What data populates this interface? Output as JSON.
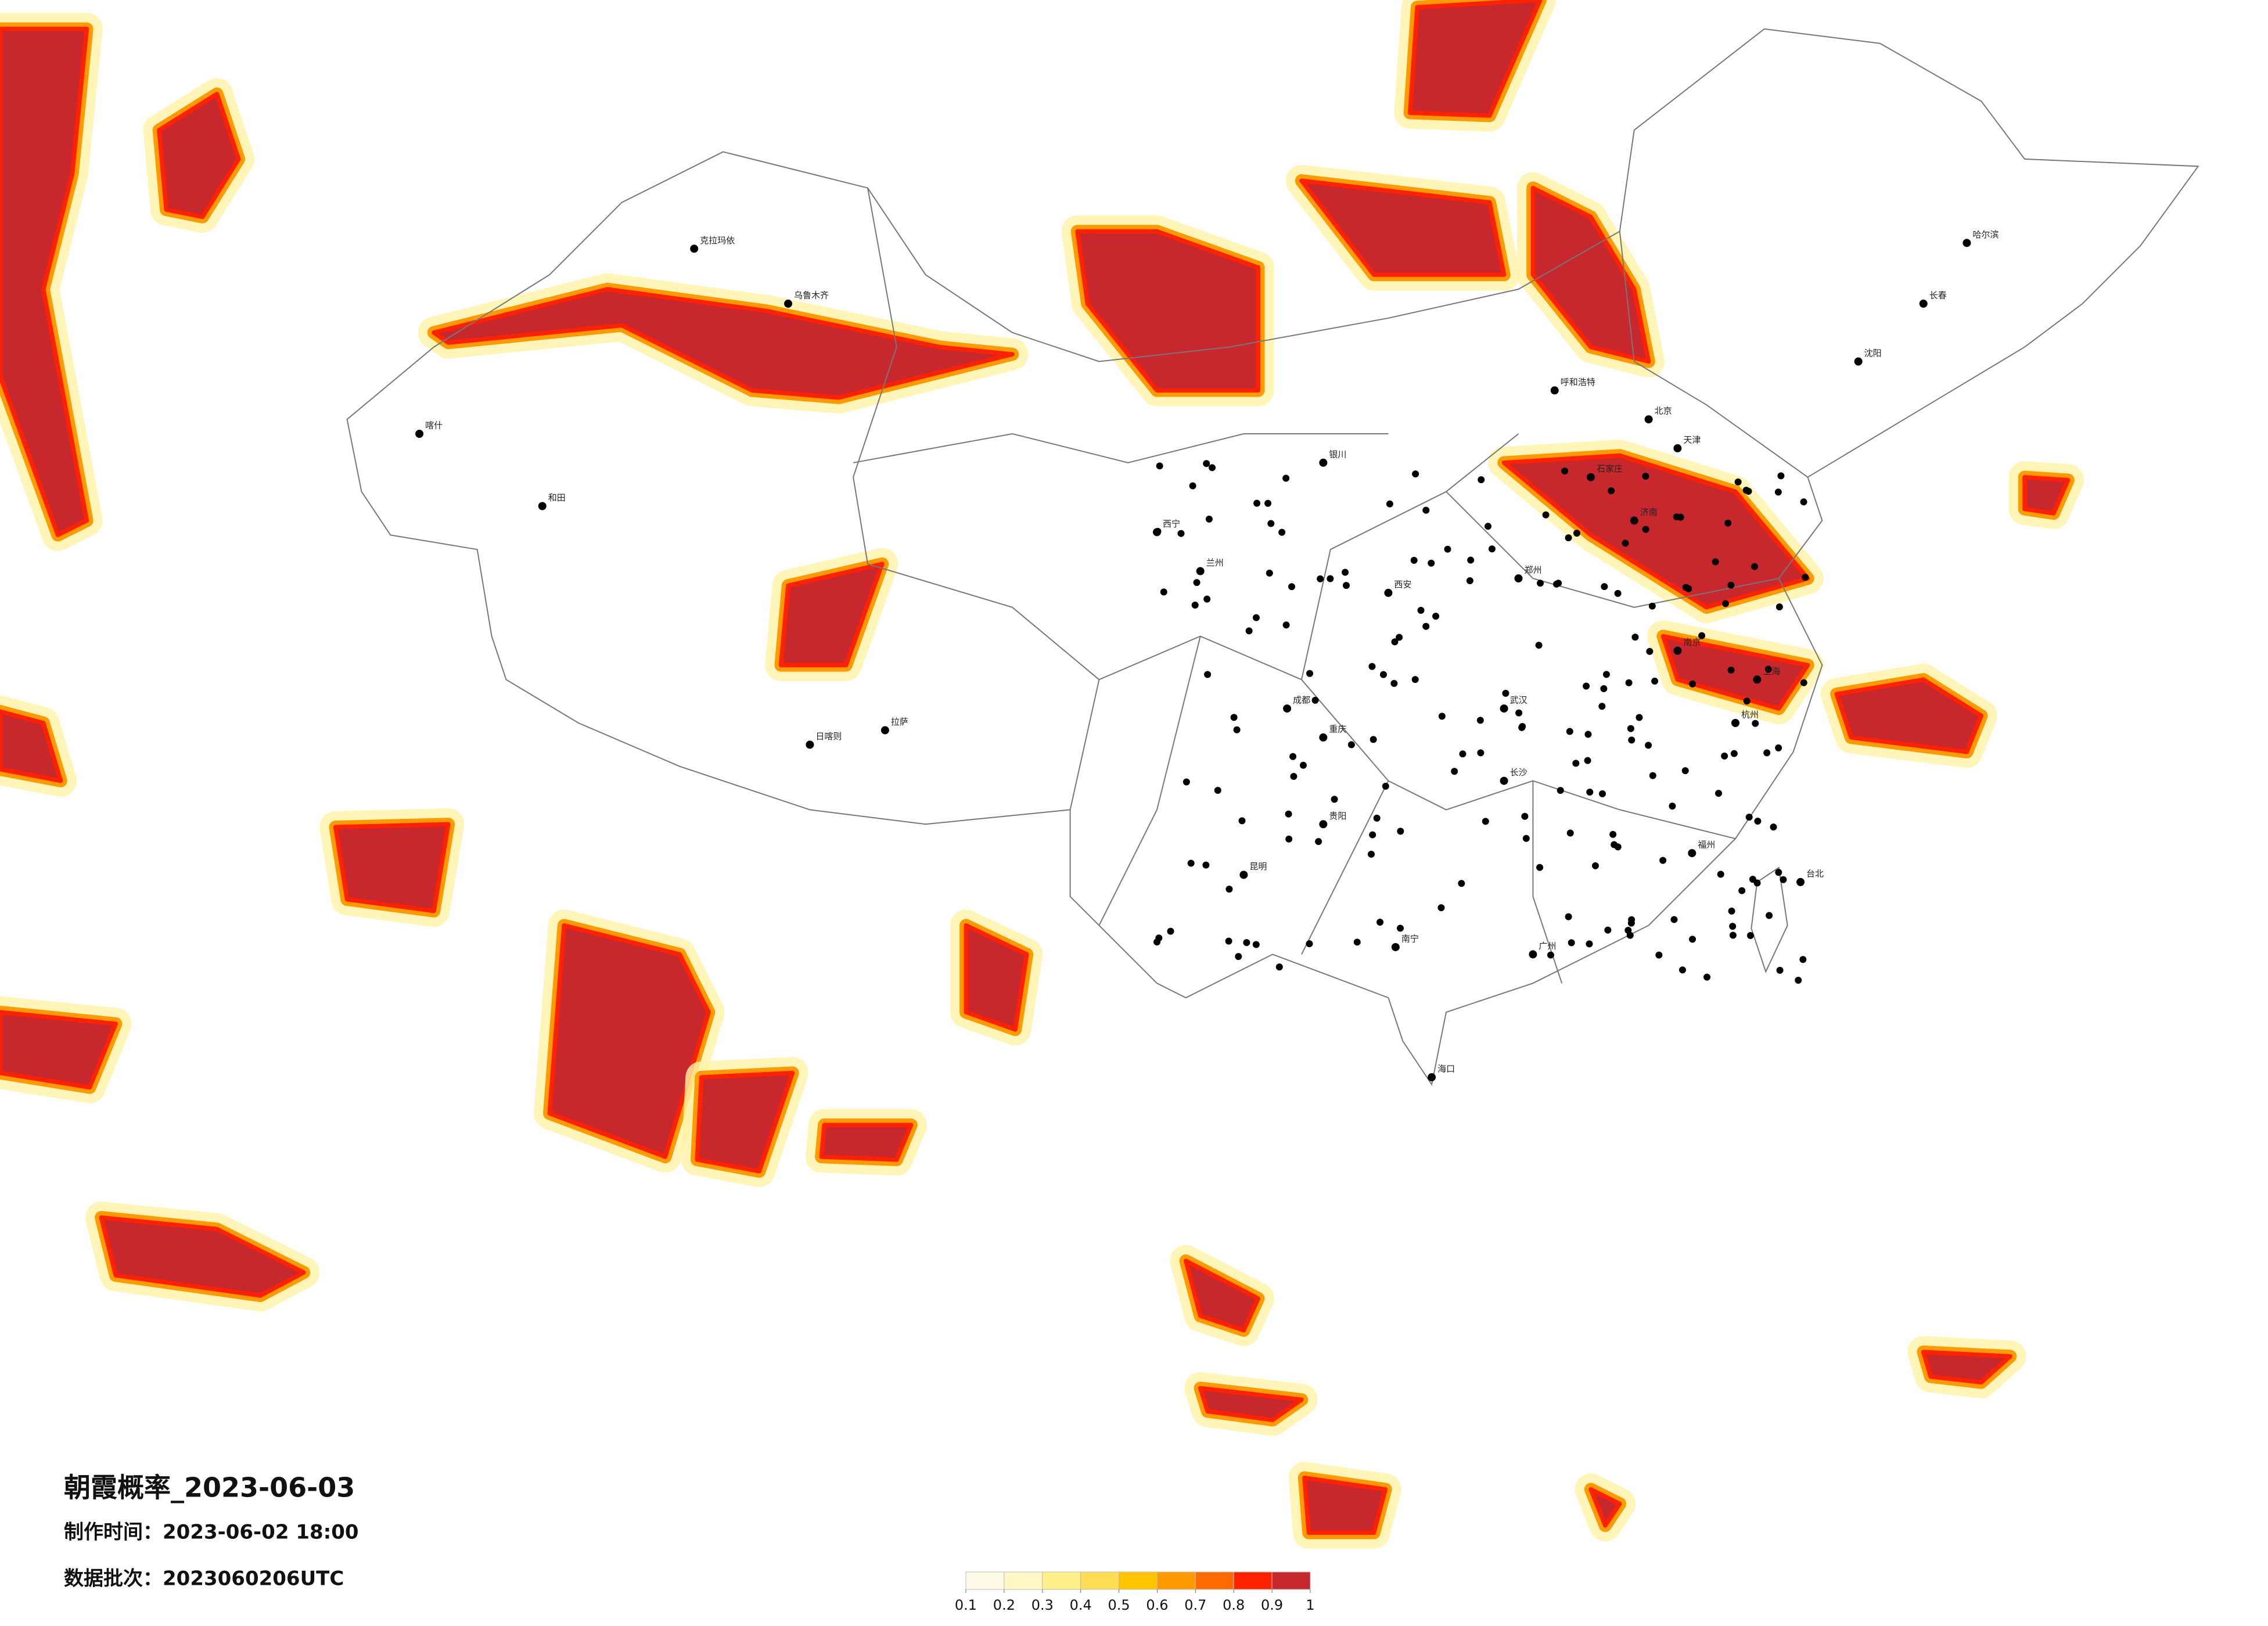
{
  "title": "朝霞概率_2023-06-03",
  "production_time": "制作时间：2023-06-02 18:00",
  "batch": "数据批次：2023060206UTC",
  "cities": [
    "乌鲁木齐",
    "克拉玛依",
    "喀什",
    "和田",
    "拉萨",
    "日喀则",
    "西宁",
    "兰州",
    "银川",
    "呼和浩特",
    "北京",
    "天津",
    "石家庄",
    "哈尔滨",
    "长春",
    "沈阳",
    "济南",
    "郑州",
    "西安",
    "成都",
    "重庆",
    "武汉",
    "南京",
    "上海",
    "杭州",
    "长沙",
    "贵阳",
    "昆明",
    "南宁",
    "广州",
    "福州",
    "台北",
    "海口"
  ],
  "legend": {
    "ticks": [
      0.1,
      0.2,
      0.3,
      0.4,
      0.5,
      0.6,
      0.7,
      0.8,
      0.9,
      1
    ],
    "colors": [
      "#fffbe6",
      "#fff8c4",
      "#fff08a",
      "#ffdd55",
      "#ffc300",
      "#ff9a00",
      "#ff6a00",
      "#ff2200",
      "#c6282e"
    ]
  }
}
